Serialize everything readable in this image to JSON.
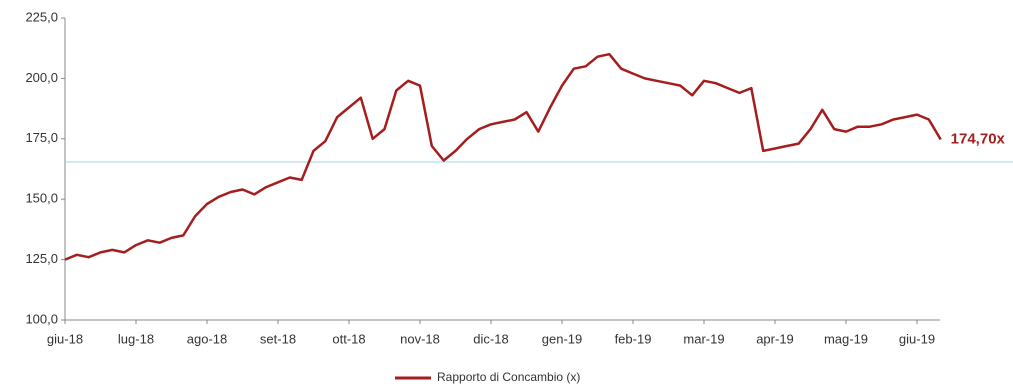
{
  "chart_data": {
    "type": "line",
    "categories": [
      "giu-18",
      null,
      null,
      null,
      null,
      null,
      "lug-18",
      null,
      null,
      null,
      null,
      null,
      "ago-18",
      null,
      null,
      null,
      null,
      null,
      "set-18",
      null,
      null,
      null,
      null,
      null,
      "ott-18",
      null,
      null,
      null,
      null,
      null,
      "nov-18",
      null,
      null,
      null,
      null,
      null,
      "dic-18",
      null,
      null,
      null,
      null,
      null,
      "gen-19",
      null,
      null,
      null,
      null,
      null,
      "feb-19",
      null,
      null,
      null,
      null,
      null,
      "mar-19",
      null,
      null,
      null,
      null,
      null,
      "apr-19",
      null,
      null,
      null,
      null,
      null,
      "mag-19",
      null,
      null,
      null,
      null,
      null,
      "giu-19",
      null,
      null
    ],
    "series": [
      {
        "name": "Rapporto di Concambio (x)",
        "color": "#a51e1e",
        "values": [
          125,
          127,
          126,
          128,
          129,
          128,
          131,
          133,
          132,
          134,
          135,
          143,
          148,
          151,
          153,
          154,
          152,
          155,
          157,
          159,
          158,
          170,
          174,
          184,
          188,
          192,
          175,
          179,
          195,
          199,
          197,
          172,
          166,
          170,
          175,
          179,
          181,
          182,
          183,
          186,
          178,
          188,
          197,
          204,
          205,
          209,
          210,
          204,
          202,
          200,
          199,
          198,
          197,
          193,
          199,
          198,
          196,
          194,
          196,
          170,
          171,
          172,
          173,
          179,
          187,
          179,
          178,
          180,
          180,
          181,
          183,
          184,
          185,
          183,
          174.7
        ],
        "value_labels": [
          null,
          null,
          null,
          null,
          null,
          null,
          null,
          null,
          null,
          null,
          null,
          null,
          null,
          null,
          null,
          null,
          null,
          null,
          null,
          null,
          null,
          null,
          null,
          null,
          null,
          null,
          null,
          null,
          null,
          null,
          null,
          null,
          null,
          null,
          null,
          null,
          null,
          null,
          null,
          null,
          null,
          null,
          null,
          null,
          null,
          null,
          null,
          null,
          null,
          null,
          null,
          null,
          null,
          null,
          null,
          null,
          null,
          null,
          null,
          null,
          null,
          null,
          null,
          null,
          null,
          null,
          null,
          null,
          null,
          null,
          null,
          null,
          null,
          null,
          "174,70x"
        ]
      }
    ],
    "reference_line": {
      "value": 165.4,
      "color": "#9fd3ee"
    },
    "ylim": [
      100,
      225
    ],
    "yticks": [
      {
        "value": 100,
        "label": "100,0"
      },
      {
        "value": 125,
        "label": "125,0"
      },
      {
        "value": 150,
        "label": "150,0"
      },
      {
        "value": 175,
        "label": "175,0"
      },
      {
        "value": 200,
        "label": "200,0"
      },
      {
        "value": 225,
        "label": "225,0"
      }
    ],
    "grid": false,
    "legend": "bottom"
  }
}
